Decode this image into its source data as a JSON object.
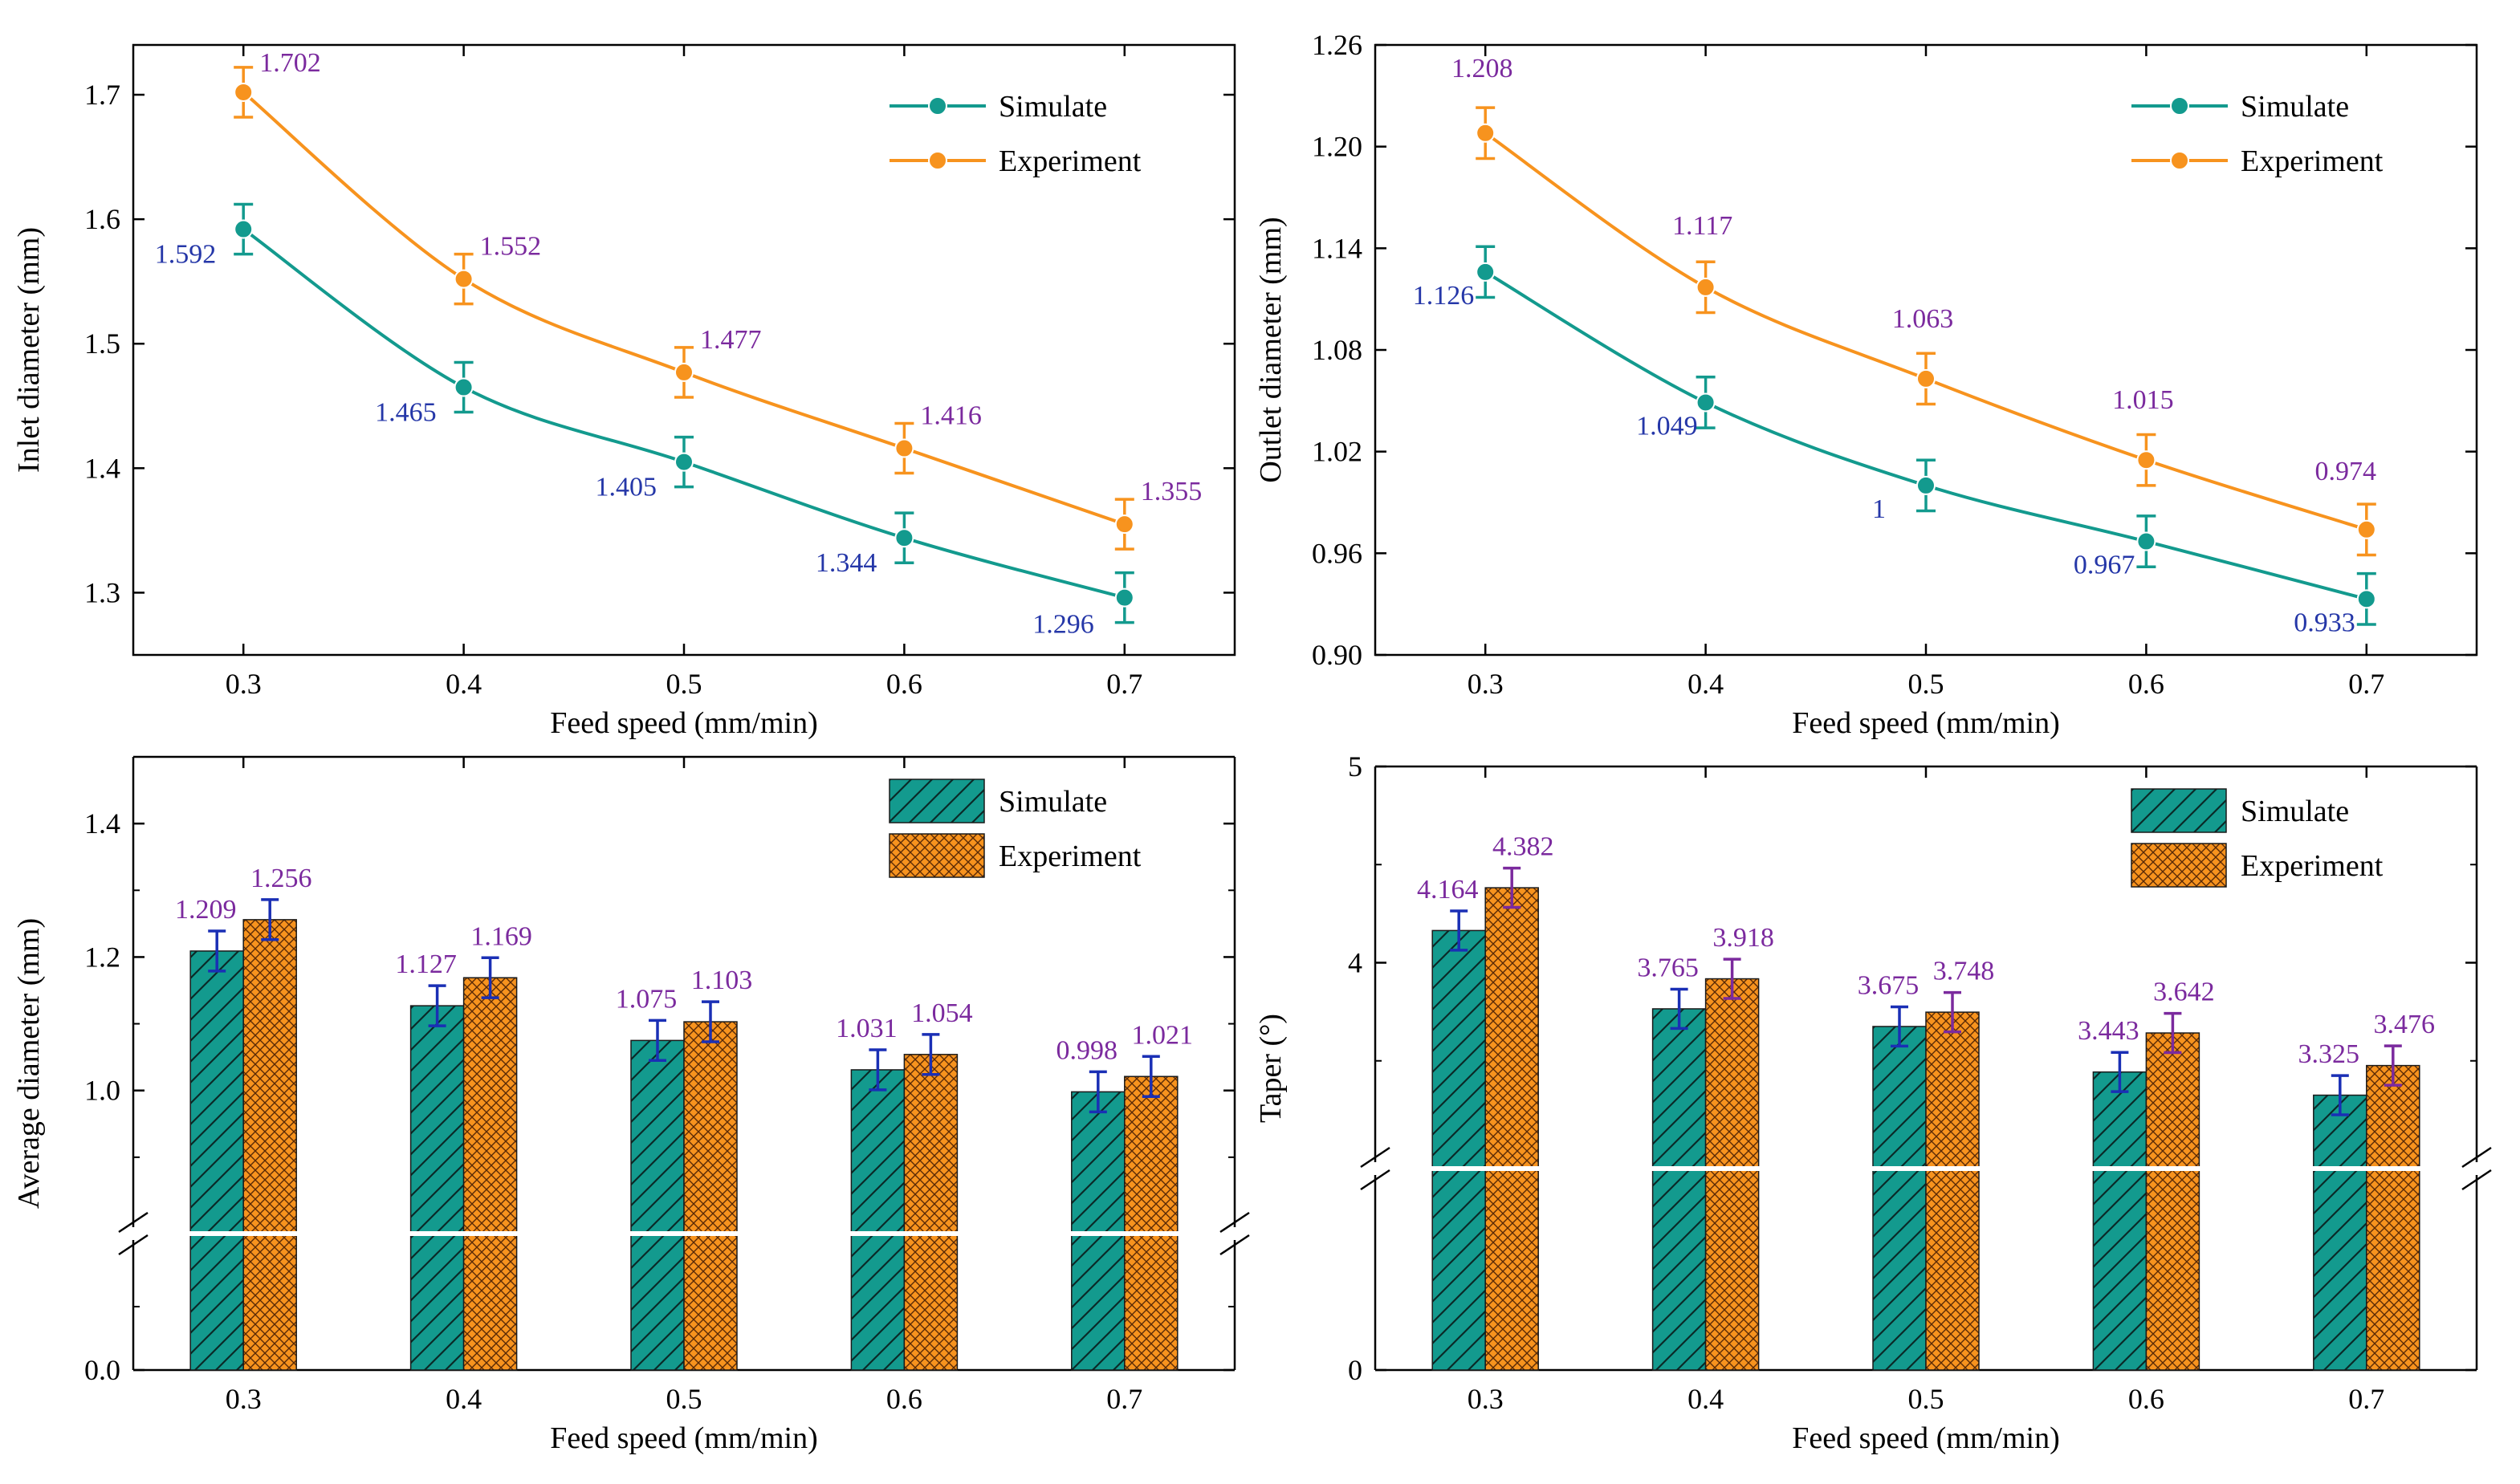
{
  "colors": {
    "simulate": "#139a8e",
    "experiment": "#f7931e",
    "label_simulate": "#2537a8",
    "label_experiment": "#7b2a9e",
    "error_bar_bar": "#1a2fb5",
    "error_bar_exp_bar": "#7b2a9e",
    "axis": "#000000"
  },
  "chart_data": [
    {
      "id": "inlet",
      "type": "line",
      "title": "",
      "xlabel": "Feed speed (mm/min)",
      "ylabel": "Inlet diameter (mm)",
      "categories": [
        "0.3",
        "0.4",
        "0.5",
        "0.6",
        "0.7"
      ],
      "x": [
        0.3,
        0.4,
        0.5,
        0.6,
        0.7
      ],
      "xlim": [
        0.25,
        0.75
      ],
      "ylim": [
        1.25,
        1.74
      ],
      "yticks": [
        1.3,
        1.4,
        1.5,
        1.6,
        1.7
      ],
      "ytick_labels": [
        "1.3",
        "1.4",
        "1.5",
        "1.6",
        "1.7"
      ],
      "legend_position": "top-right",
      "series": [
        {
          "name": "Simulate",
          "values": [
            1.592,
            1.465,
            1.405,
            1.344,
            1.296
          ],
          "labels": [
            "1.592",
            "1.465",
            "1.405",
            "1.344",
            "1.296"
          ],
          "error": 0.02
        },
        {
          "name": "Experiment",
          "values": [
            1.702,
            1.552,
            1.477,
            1.416,
            1.355
          ],
          "labels": [
            "1.702",
            "1.552",
            "1.477",
            "1.416",
            "1.355"
          ],
          "error": 0.02
        }
      ]
    },
    {
      "id": "outlet",
      "type": "line",
      "title": "",
      "xlabel": "Feed speed (mm/min)",
      "ylabel": "Outlet diameter (mm)",
      "categories": [
        "0.3",
        "0.4",
        "0.5",
        "0.6",
        "0.7"
      ],
      "x": [
        0.3,
        0.4,
        0.5,
        0.6,
        0.7
      ],
      "xlim": [
        0.25,
        0.75
      ],
      "ylim": [
        0.9,
        1.26
      ],
      "yticks": [
        0.9,
        0.96,
        1.02,
        1.08,
        1.14,
        1.2,
        1.26
      ],
      "ytick_labels": [
        "0.90",
        "0.96",
        "1.02",
        "1.08",
        "1.14",
        "1.20",
        "1.26"
      ],
      "legend_position": "top-right",
      "series": [
        {
          "name": "Simulate",
          "values": [
            1.126,
            1.049,
            1.0,
            0.967,
            0.933
          ],
          "labels": [
            "1.126",
            "1.049",
            "1",
            "0.967",
            "0.933"
          ],
          "error": 0.015
        },
        {
          "name": "Experiment",
          "values": [
            1.208,
            1.117,
            1.063,
            1.015,
            0.974
          ],
          "labels": [
            "1.208",
            "1.117",
            "1.063",
            "1.015",
            "0.974"
          ],
          "error": 0.015
        }
      ]
    },
    {
      "id": "average",
      "type": "bar",
      "title": "",
      "xlabel": "Feed speed (mm/min)",
      "ylabel": "Average diameter (mm)",
      "categories": [
        "0.3",
        "0.4",
        "0.5",
        "0.6",
        "0.7"
      ],
      "ylim_lower": [
        0,
        0.2
      ],
      "ylim_upper": [
        0.8,
        1.5
      ],
      "axis_break": true,
      "yticks": [
        0.0,
        1.0,
        1.2,
        1.4
      ],
      "ytick_labels": [
        "0.0",
        "1.0",
        "1.2",
        "1.4"
      ],
      "legend_position": "top-right",
      "series": [
        {
          "name": "Simulate",
          "pattern": "hatch",
          "values": [
            1.209,
            1.127,
            1.075,
            1.031,
            0.998
          ],
          "labels": [
            "1.209",
            "1.127",
            "1.075",
            "1.031",
            "0.998"
          ],
          "error": 0.03
        },
        {
          "name": "Experiment",
          "pattern": "crosshatch",
          "values": [
            1.256,
            1.169,
            1.103,
            1.054,
            1.021
          ],
          "labels": [
            "1.256",
            "1.169",
            "1.103",
            "1.054",
            "1.021"
          ],
          "error": 0.03
        }
      ]
    },
    {
      "id": "taper",
      "type": "bar",
      "title": "",
      "xlabel": "Feed speed (mm/min)",
      "ylabel": "Taper (°)",
      "categories": [
        "0.3",
        "0.4",
        "0.5",
        "0.6",
        "0.7"
      ],
      "ylim_lower": [
        0,
        1.7
      ],
      "ylim_upper": [
        3.0,
        5.0
      ],
      "axis_break": true,
      "yticks": [
        0,
        4,
        5
      ],
      "ytick_labels": [
        "0",
        "4",
        "5"
      ],
      "legend_position": "top-right",
      "series": [
        {
          "name": "Simulate",
          "pattern": "hatch",
          "values": [
            4.164,
            3.765,
            3.675,
            3.443,
            3.325
          ],
          "labels": [
            "4.164",
            "3.765",
            "3.675",
            "3.443",
            "3.325"
          ],
          "error": 0.1
        },
        {
          "name": "Experiment",
          "pattern": "crosshatch",
          "values": [
            4.382,
            3.918,
            3.748,
            3.642,
            3.476
          ],
          "labels": [
            "4.382",
            "3.918",
            "3.748",
            "3.642",
            "3.476"
          ],
          "error": 0.1
        }
      ]
    }
  ]
}
